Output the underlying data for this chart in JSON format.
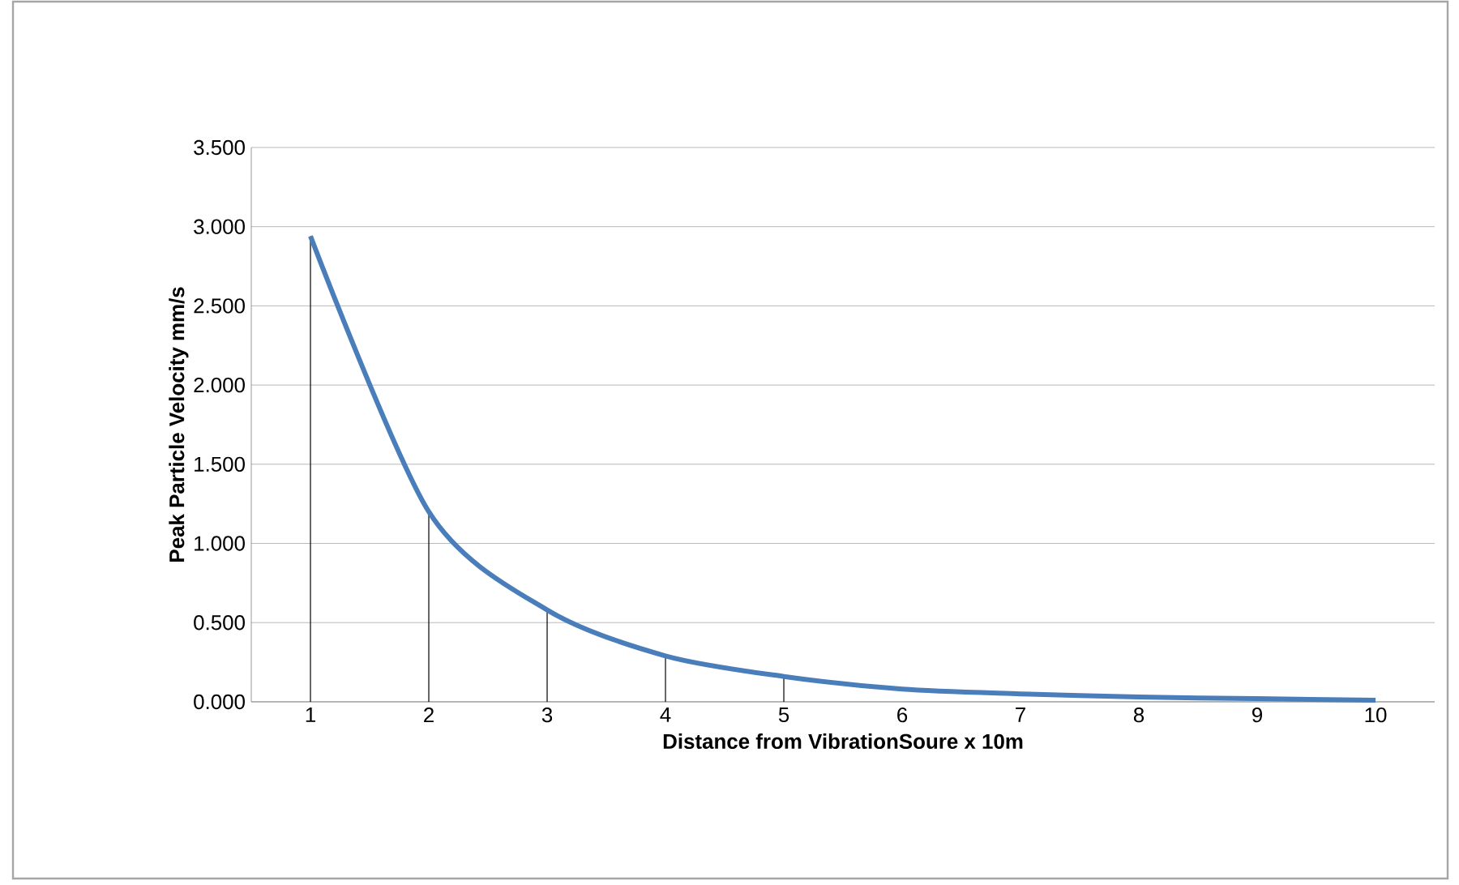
{
  "chart_data": {
    "type": "line",
    "xlabel": "Distance from VibrationSoure  x 10m",
    "ylabel": "Peak Particle Velocity mm/s",
    "categories": [
      "1",
      "2",
      "3",
      "4",
      "5",
      "6",
      "7",
      "8",
      "9",
      "10"
    ],
    "series": [
      {
        "color": "#4a7ebb",
        "values": [
          2.94,
          1.2,
          0.58,
          0.29,
          0.16,
          0.08,
          0.05,
          0.03,
          0.02,
          0.01
        ],
        "errors": [
          [
            0,
            2.94
          ],
          [
            0,
            1.2
          ],
          [
            0,
            0.58
          ],
          [
            0,
            0.29
          ],
          [
            0,
            0.16
          ],
          null,
          null,
          null,
          null,
          null
        ]
      }
    ],
    "ylim": [
      0,
      3.5
    ],
    "yticks": [
      {
        "value": 0,
        "label": "0.000"
      },
      {
        "value": 0.5,
        "label": "0.500"
      },
      {
        "value": 1,
        "label": "1.000"
      },
      {
        "value": 1.5,
        "label": "1.500"
      },
      {
        "value": 2,
        "label": "2.000"
      },
      {
        "value": 2.5,
        "label": "2.500"
      },
      {
        "value": 3,
        "label": "3.000"
      },
      {
        "value": 3.5,
        "label": "3.500"
      }
    ],
    "grid": "y",
    "marker": "none",
    "line_style": "solid"
  }
}
